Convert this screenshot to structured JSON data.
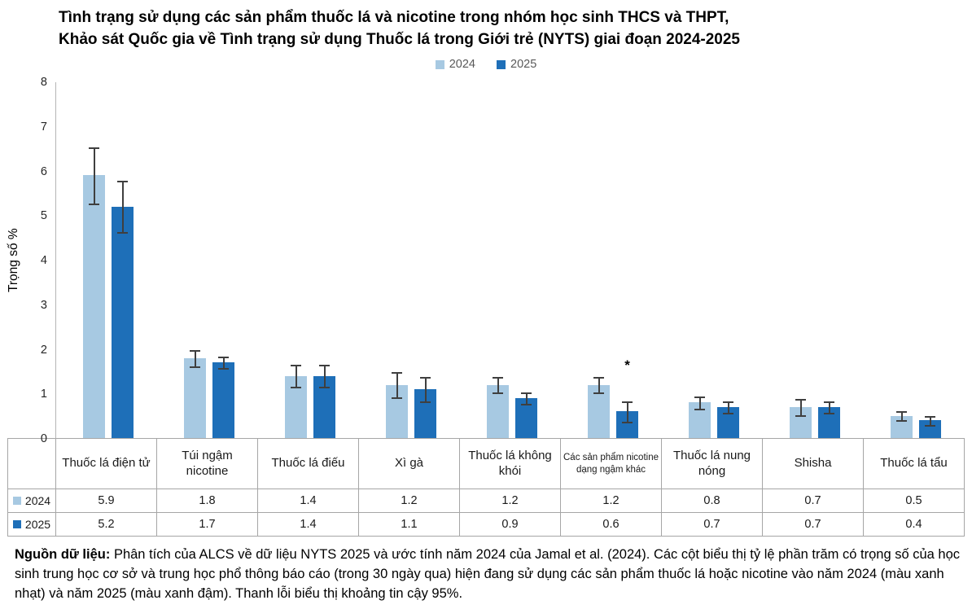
{
  "title": {
    "line1": "Tình trạng sử dụng các sản phẩm thuốc lá và nicotine trong nhóm học sinh THCS và THPT,",
    "line2": "Khảo sát Quốc gia về Tình trạng sử dụng Thuốc lá trong Giới trẻ (NYTS) giai đoạn 2024-2025"
  },
  "chart_data": {
    "type": "bar",
    "title": "Tình trạng sử dụng các sản phẩm thuốc lá và nicotine trong nhóm học sinh THCS và THPT, Khảo sát Quốc gia về Tình trạng sử dụng Thuốc lá trong Giới trẻ (NYTS) giai đoạn 2024-2025",
    "xlabel": "",
    "ylabel": "Trọng số %",
    "ylim": [
      0,
      8
    ],
    "ytick_step": 1,
    "grid": false,
    "legend_position": "top",
    "categories": [
      "Thuốc lá điện tử",
      "Túi ngậm nicotine",
      "Thuốc lá điếu",
      "Xì gà",
      "Thuốc lá không khói",
      "Các sản phẩm nicotine dạng ngậm khác",
      "Thuốc lá nung nóng",
      "Shisha",
      "Thuốc lá tẩu"
    ],
    "series": [
      {
        "name": "2024",
        "color": "#a7c9e2",
        "values": [
          5.9,
          1.8,
          1.4,
          1.2,
          1.2,
          1.2,
          0.8,
          0.7,
          0.5
        ],
        "errors": [
          0.65,
          0.2,
          0.27,
          0.3,
          0.2,
          0.2,
          0.15,
          0.2,
          0.12
        ]
      },
      {
        "name": "2025",
        "color": "#1e6fb8",
        "values": [
          5.2,
          1.7,
          1.4,
          1.1,
          0.9,
          0.6,
          0.7,
          0.7,
          0.4
        ],
        "errors": [
          0.6,
          0.15,
          0.27,
          0.3,
          0.15,
          0.25,
          0.15,
          0.15,
          0.12
        ]
      }
    ],
    "annotations": [
      {
        "text": "*",
        "category_index": 5,
        "series": "2025",
        "y": 1.5
      }
    ]
  },
  "footnote": {
    "label": "Nguồn dữ liệu:",
    "text": " Phân tích của ALCS về dữ liệu NYTS 2025 và ước tính năm 2024 của Jamal et al. (2024). Các cột biểu thị tỷ lệ phần trăm có trọng số của học sinh trung học cơ sở và trung học phổ thông báo cáo (trong 30 ngày qua) hiện đang sử dụng các sản phẩm thuốc lá hoặc nicotine vào năm 2024 (màu xanh nhạt) và năm 2025 (màu xanh đậm). Thanh lỗi biểu thị khoảng tin cậy 95%."
  }
}
